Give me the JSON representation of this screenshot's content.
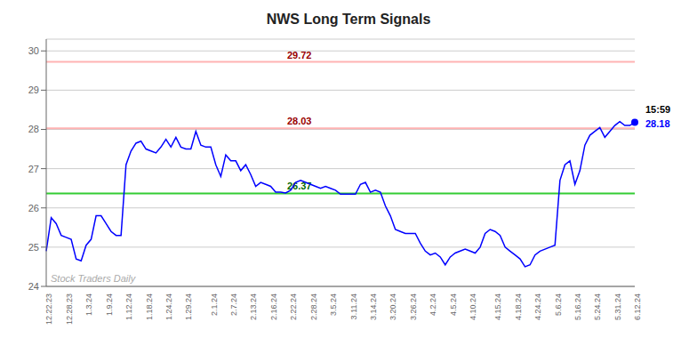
{
  "chart_data": {
    "type": "line",
    "title": "NWS Long Term Signals",
    "color": "blue",
    "categories": [
      "12.22.23",
      null,
      null,
      null,
      "12.28.23",
      null,
      null,
      null,
      "1.3.24",
      null,
      null,
      null,
      "1.9.24",
      null,
      null,
      null,
      "1.12.24",
      null,
      null,
      null,
      "1.18.24",
      null,
      null,
      null,
      "1.24.24",
      null,
      null,
      null,
      "1.29.24",
      null,
      null,
      null,
      null,
      "2.1.24",
      null,
      null,
      null,
      "2.7.24",
      null,
      null,
      null,
      "2.13.24",
      null,
      null,
      null,
      "2.16.24",
      null,
      null,
      null,
      "2.22.24",
      null,
      null,
      null,
      "2.28.24",
      null,
      null,
      null,
      "3.5.24",
      null,
      null,
      null,
      "3.11.24",
      null,
      null,
      null,
      "3.14.24",
      null,
      null,
      null,
      "3.20.24",
      null,
      null,
      null,
      "3.26.24",
      null,
      null,
      null,
      "4.2.24",
      null,
      null,
      null,
      "4.5.24",
      null,
      null,
      null,
      "4.10.24",
      null,
      null,
      null,
      null,
      "4.15.24",
      null,
      null,
      null,
      "4.18.24",
      null,
      null,
      null,
      "4.24.24",
      null,
      null,
      null,
      "5.6.24",
      null,
      null,
      null,
      "5.16.24",
      null,
      null,
      null,
      "5.24.24",
      null,
      null,
      null,
      "5.31.24",
      null,
      null,
      null,
      "6.12.24"
    ],
    "values": [
      24.9,
      25.75,
      25.6,
      25.3,
      25.25,
      25.2,
      24.7,
      24.65,
      25.05,
      25.2,
      25.8,
      25.8,
      25.6,
      25.4,
      25.3,
      25.3,
      27.1,
      27.45,
      27.65,
      27.7,
      27.5,
      27.45,
      27.4,
      27.55,
      27.75,
      27.55,
      27.8,
      27.55,
      27.5,
      27.5,
      27.95,
      27.6,
      27.55,
      27.55,
      27.1,
      26.8,
      27.35,
      27.2,
      27.2,
      26.95,
      27.1,
      26.85,
      26.55,
      26.65,
      26.6,
      26.55,
      26.4,
      26.4,
      26.38,
      26.45,
      26.65,
      26.7,
      26.65,
      26.6,
      26.55,
      26.5,
      26.55,
      26.5,
      26.45,
      26.35,
      26.35,
      26.35,
      26.35,
      26.6,
      26.65,
      26.4,
      26.45,
      26.4,
      26.05,
      25.8,
      25.45,
      25.4,
      25.35,
      25.35,
      25.35,
      25.1,
      24.9,
      24.8,
      24.85,
      24.75,
      24.55,
      24.75,
      24.85,
      24.9,
      24.95,
      24.9,
      24.85,
      25.0,
      25.35,
      25.45,
      25.4,
      25.3,
      25.0,
      24.9,
      24.8,
      24.7,
      24.5,
      24.55,
      24.8,
      24.9,
      24.95,
      25.0,
      25.05,
      26.7,
      27.1,
      27.2,
      26.6,
      26.95,
      27.6,
      27.85,
      27.95,
      28.05,
      27.8,
      27.95,
      28.1,
      28.2,
      28.1,
      28.1,
      28.18
    ],
    "ylim": [
      24.0,
      30.3
    ],
    "yticks": [
      24,
      25,
      26,
      27,
      28,
      29,
      30
    ],
    "grid": true,
    "hlines": [
      {
        "value": 29.72,
        "label": "29.72",
        "color": "#ffb3b3",
        "label_color": "#990000"
      },
      {
        "value": 28.03,
        "label": "28.03",
        "color": "#ffb3b3",
        "label_color": "#990000"
      },
      {
        "value": 26.37,
        "label": "26.37",
        "color": "#33cc33",
        "label_color": "#006600"
      }
    ],
    "annotations": [
      {
        "text": "15:59",
        "color": "black"
      },
      {
        "text": "28.18",
        "color": "blue"
      },
      {
        "text": "Stock Traders Daily",
        "color": "#aaaaaa"
      }
    ]
  }
}
